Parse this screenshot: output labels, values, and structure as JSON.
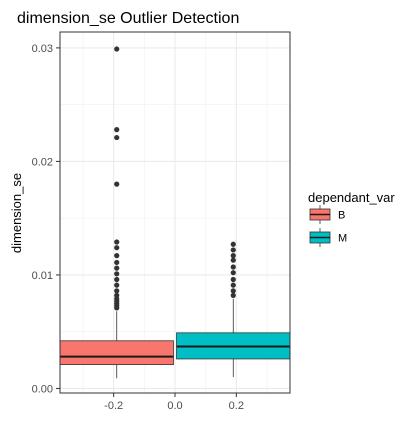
{
  "chart_data": {
    "type": "boxplot",
    "title": "dimension_se Outlier Detection",
    "xlabel": "",
    "ylabel": "dimension_se",
    "xlim": [
      -0.375,
      0.375
    ],
    "ylim": [
      -0.0004,
      0.0314
    ],
    "x_ticks": [
      -0.2,
      0.0,
      0.2
    ],
    "x_tick_labels": [
      "-0.2",
      "0.0",
      "0.2"
    ],
    "y_ticks": [
      0.0,
      0.01,
      0.02,
      0.03
    ],
    "y_tick_labels": [
      "0.00",
      "0.01",
      "0.02",
      "0.03"
    ],
    "grid": true,
    "legend_position": "right",
    "legend_title": "dependant_var",
    "series": [
      {
        "name": "B",
        "color": "#F8766D",
        "x_range": [
          -0.375,
          -0.005
        ],
        "stats": {
          "min": 0.0009,
          "q1": 0.0021,
          "median": 0.0028,
          "q3": 0.0042,
          "max": 0.0068
        },
        "outliers": [
          0.0071,
          0.0073,
          0.0075,
          0.0077,
          0.0079,
          0.0082,
          0.0086,
          0.0091,
          0.0096,
          0.0101,
          0.0106,
          0.0111,
          0.0117,
          0.0124,
          0.0129,
          0.018,
          0.0221,
          0.0228,
          0.0299
        ]
      },
      {
        "name": "M",
        "color": "#00BFC4",
        "x_range": [
          0.005,
          0.375
        ],
        "stats": {
          "min": 0.001,
          "q1": 0.0026,
          "median": 0.0037,
          "q3": 0.0049,
          "max": 0.0079
        },
        "outliers": [
          0.0082,
          0.0086,
          0.0091,
          0.0096,
          0.0102,
          0.0107,
          0.0113,
          0.0117,
          0.0122,
          0.0127
        ]
      }
    ]
  }
}
